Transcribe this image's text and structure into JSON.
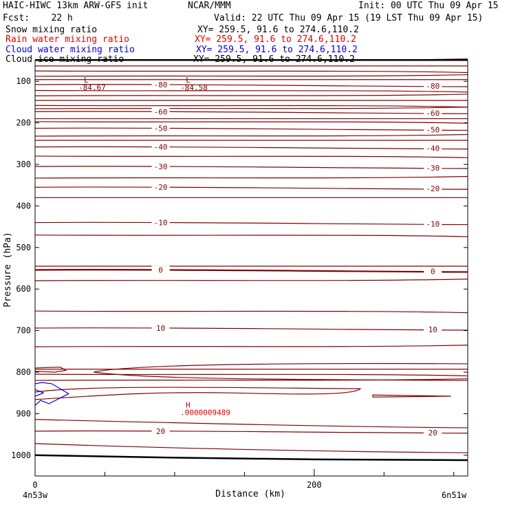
{
  "header": {
    "model": "HAIC-HIWC 13km ARW-GFS init",
    "org": "NCAR/MMM",
    "init": "Init: 00 UTC Thu 09 Apr 15",
    "fcst": "Fcst:    22 h",
    "valid": "Valid: 22 UTC Thu 09 Apr 15 (19 LST Thu 09 Apr 15)"
  },
  "fields": [
    {
      "name": "Snow mixing ratio",
      "xy": "XY= 259.5, 91.6 to 274.6,110.2",
      "color": "#000000"
    },
    {
      "name": "Rain water mixing ratio",
      "xy": "XY= 259.5, 91.6 to 274.6,110.2",
      "color": "#e00000"
    },
    {
      "name": "Cloud water mixing ratio",
      "xy": "XY= 259.5, 91.6 to 274.6,110.2",
      "color": "#0000cc"
    },
    {
      "name": "Cloud ice mixing ratio",
      "xy": "XY= 259.5, 91.6 to 274.6,110.2",
      "color": "#000000"
    }
  ],
  "chart_data": {
    "type": "contour",
    "xlabel": "Distance (km)",
    "ylabel": "Pressure (hPa)",
    "xlim": [
      0,
      310
    ],
    "ylim": [
      1050,
      50
    ],
    "x_ticks": [
      0,
      200
    ],
    "x_minor": [
      50,
      100,
      150,
      250,
      300
    ],
    "y_ticks": [
      100,
      200,
      300,
      400,
      500,
      600,
      700,
      800,
      900,
      1000
    ],
    "endpoint_left": "4n53w",
    "endpoint_right": "6n51w",
    "contour_color": "#800000",
    "temperature_isotherms": [
      {
        "label": "-80",
        "level": 108
      },
      {
        "label": "-60",
        "level": 173
      },
      {
        "label": "-50",
        "level": 213
      },
      {
        "label": "-40",
        "level": 258
      },
      {
        "label": "-30",
        "level": 305
      },
      {
        "label": "-20",
        "level": 355
      },
      {
        "label": "-10",
        "level": 440
      },
      {
        "label": "0",
        "level": 554
      },
      {
        "label": "10",
        "level": 694
      },
      {
        "label": "20",
        "level": 942
      }
    ],
    "annotations": [
      {
        "text": "L",
        "value": "-84.67",
        "x": 35,
        "p": 80
      },
      {
        "text": "L",
        "value": "-84.58",
        "x": 108,
        "p": 80
      },
      {
        "text": "H",
        "value": ".0000009489",
        "x": 108,
        "p": 862
      }
    ],
    "surface": {
      "x": [
        0,
        100,
        200,
        310
      ],
      "p": [
        1000,
        1006,
        1010,
        1012
      ]
    }
  }
}
